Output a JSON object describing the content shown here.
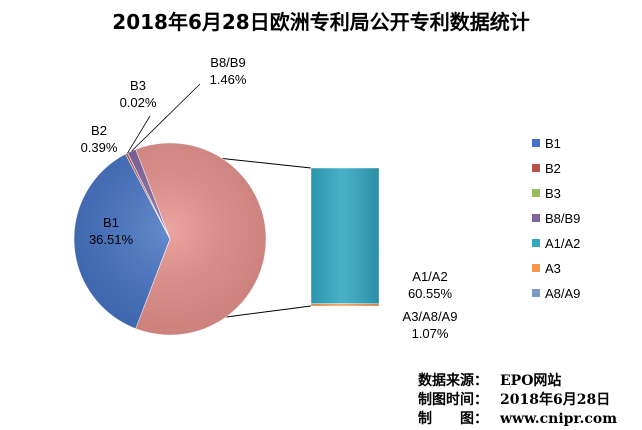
{
  "chart_data": {
    "type": "pie",
    "subtype": "bar-of-pie",
    "title": "2018年6月28日欧洲专利局公开专利数据统计",
    "pie_slices": [
      {
        "key": "B1",
        "name": "B1",
        "label_name": "B1",
        "value": 36.51,
        "label": "36.51%",
        "color": "#4472c4"
      },
      {
        "key": "B2",
        "name": "B2",
        "label_name": "B2",
        "value": 0.39,
        "label": "0.39%",
        "color": "#c0504d"
      },
      {
        "key": "B3",
        "name": "B3",
        "label_name": "B3",
        "value": 0.02,
        "label": "0.02%",
        "color": "#9bbb59"
      },
      {
        "key": "B8B9",
        "name": "B8/B9",
        "label_name": "B8/B9",
        "value": 1.46,
        "label": "1.46%",
        "color": "#8064a2"
      },
      {
        "key": "other",
        "name": "",
        "label_name": "",
        "value": 61.62,
        "label": "",
        "color": "#e6908b"
      }
    ],
    "bar_segments": [
      {
        "key": "A1A2",
        "name": "A1/A2",
        "label_name": "A1/A2",
        "value": 60.55,
        "label": "60.55%",
        "color": "#31a7c0"
      },
      {
        "key": "A3A8A9",
        "name": "A3/A8/A9",
        "label_name": "A3/A8/A9",
        "value": 1.07,
        "label": "1.07%",
        "color": "#f79646"
      }
    ],
    "legend": {
      "placement": "right",
      "entries": [
        {
          "name": "B1",
          "color": "#4472c4"
        },
        {
          "name": "B2",
          "color": "#c0504d"
        },
        {
          "name": "B3",
          "color": "#9bbb59"
        },
        {
          "name": "B8/B9",
          "color": "#8064a2"
        },
        {
          "name": "A1/A2",
          "color": "#31a7c0"
        },
        {
          "name": "A3",
          "color": "#f79646"
        },
        {
          "name": "A8/A9",
          "color": "#7c9bc8"
        }
      ]
    },
    "grid": false
  },
  "source": {
    "data_source_label": "数据来源：",
    "data_source_value": "EPO网站",
    "date_label": "制图时间：",
    "date_value": "2018年6月28日",
    "maker_label": "制　　图：",
    "maker_value": "www.cnipr.com"
  }
}
